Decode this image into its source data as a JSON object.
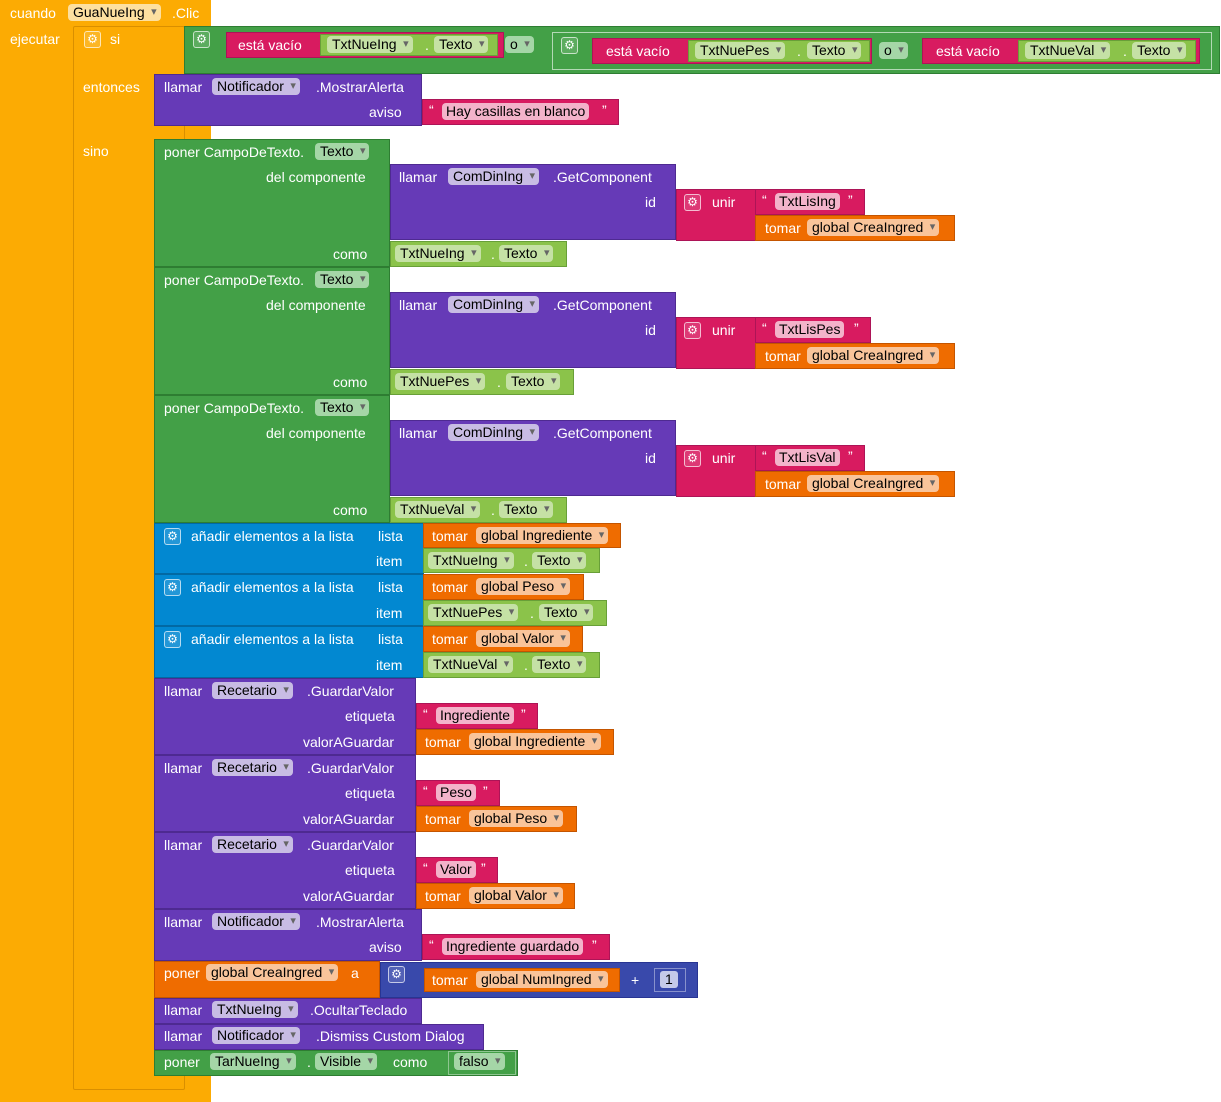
{
  "event": {
    "when": "cuando",
    "component": "GuaNueIng",
    "event": ".Clic",
    "do": "ejecutar"
  },
  "if_block": {
    "if": "si",
    "then": "entonces",
    "else": "sino",
    "is_empty": "está vacío",
    "or": "o",
    "cond1_comp": "TxtNueIng",
    "cond1_prop": "Texto",
    "cond2_comp": "TxtNuePes",
    "cond2_prop": "Texto",
    "cond3_comp": "TxtNueVal",
    "cond3_prop": "Texto"
  },
  "then_alert": {
    "call": "llamar",
    "component": "Notificador",
    "method": ".MostrarAlerta",
    "arg": "aviso",
    "text": "Hay casillas en blanco"
  },
  "set_generic": [
    {
      "set": "poner CampoDeTexto.",
      "prop": "Texto",
      "of_component": "del componente",
      "call": "llamar",
      "component": "ComDinIng",
      "method": ".GetComponent",
      "id": "id",
      "join": "unir",
      "str": "TxtLisIng",
      "get": "tomar",
      "var": "global CreaIngred",
      "to": "como",
      "val_comp": "TxtNueIng",
      "val_prop": "Texto"
    },
    {
      "set": "poner CampoDeTexto.",
      "prop": "Texto",
      "of_component": "del componente",
      "call": "llamar",
      "component": "ComDinIng",
      "method": ".GetComponent",
      "id": "id",
      "join": "unir",
      "str": "TxtLisPes",
      "get": "tomar",
      "var": "global CreaIngred",
      "to": "como",
      "val_comp": "TxtNuePes",
      "val_prop": "Texto"
    },
    {
      "set": "poner CampoDeTexto.",
      "prop": "Texto",
      "of_component": "del componente",
      "call": "llamar",
      "component": "ComDinIng",
      "method": ".GetComponent",
      "id": "id",
      "join": "unir",
      "str": "TxtLisVal",
      "get": "tomar",
      "var": "global CreaIngred",
      "to": "como",
      "val_comp": "TxtNueVal",
      "val_prop": "Texto"
    }
  ],
  "add_items": [
    {
      "label": "añadir elementos a la lista",
      "list": "lista",
      "item": "item",
      "get": "tomar",
      "var": "global Ingrediente",
      "comp": "TxtNueIng",
      "prop": "Texto"
    },
    {
      "label": "añadir elementos a la lista",
      "list": "lista",
      "item": "item",
      "get": "tomar",
      "var": "global Peso",
      "comp": "TxtNuePes",
      "prop": "Texto"
    },
    {
      "label": "añadir elementos a la lista",
      "list": "lista",
      "item": "item",
      "get": "tomar",
      "var": "global Valor",
      "comp": "TxtNueVal",
      "prop": "Texto"
    }
  ],
  "store": [
    {
      "call": "llamar",
      "component": "Recetario",
      "method": ".GuardarValor",
      "tag_label": "etiqueta",
      "tag": "Ingrediente",
      "val_label": "valorAGuardar",
      "get": "tomar",
      "var": "global Ingrediente"
    },
    {
      "call": "llamar",
      "component": "Recetario",
      "method": ".GuardarValor",
      "tag_label": "etiqueta",
      "tag": "Peso",
      "val_label": "valorAGuardar",
      "get": "tomar",
      "var": "global Peso"
    },
    {
      "call": "llamar",
      "component": "Recetario",
      "method": ".GuardarValor",
      "tag_label": "etiqueta",
      "tag": "Valor",
      "val_label": "valorAGuardar",
      "get": "tomar",
      "var": "global Valor"
    }
  ],
  "saved_alert": {
    "call": "llamar",
    "component": "Notificador",
    "method": ".MostrarAlerta",
    "arg": "aviso",
    "text": "Ingrediente guardado"
  },
  "set_var": {
    "set": "poner",
    "var": "global CreaIngred",
    "to": "a",
    "get": "tomar",
    "get_var": "global NumIngred",
    "plus": "+",
    "num": "1"
  },
  "hide_kb": {
    "call": "llamar",
    "component": "TxtNueIng",
    "method": ".OcultarTeclado"
  },
  "dismiss": {
    "call": "llamar",
    "component": "Notificador",
    "method": ".Dismiss Custom Dialog"
  },
  "set_visible": {
    "set": "poner",
    "component": "TarNueIng",
    "prop": "Visible",
    "to": "como",
    "value": "falso"
  },
  "colors": {
    "event": "#fcab03",
    "logic": "#43a047",
    "component": "#663ab7",
    "text": "#d81b60",
    "variable": "#ef6c00",
    "list": "#0288d1",
    "math": "#3949ab",
    "property": "#8bc34a"
  }
}
